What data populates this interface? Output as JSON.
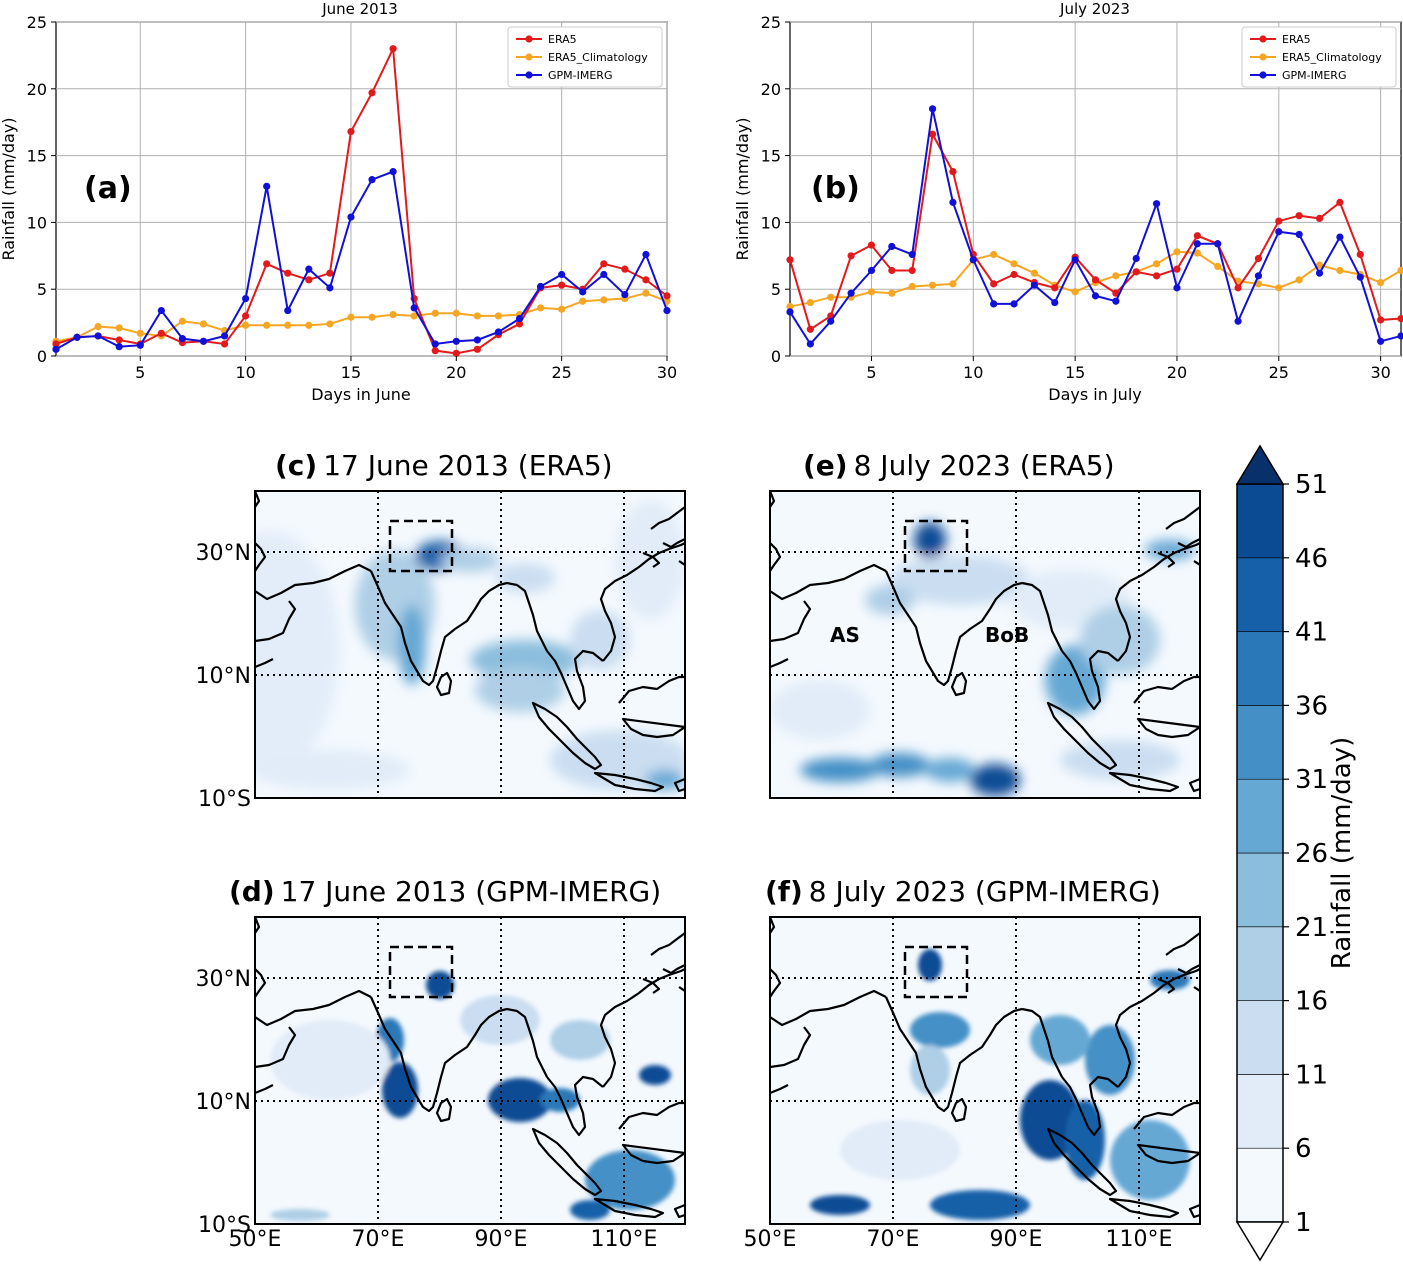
{
  "colors": {
    "era5": "#e31a1c",
    "clim": "#f5a623",
    "imerg": "#1010d8",
    "grid": "#b0b0b0"
  },
  "chart_data": [
    {
      "type": "line",
      "panel": "(a)",
      "title": "June 2013",
      "xlabel": "Days in June",
      "ylabel": "Rainfall (mm/day)",
      "xlim": [
        1,
        30
      ],
      "ylim": [
        0,
        25
      ],
      "x_ticks": [
        5,
        10,
        15,
        20,
        25,
        30
      ],
      "y_ticks": [
        0,
        5,
        10,
        15,
        20,
        25
      ],
      "grid": true,
      "legend": "top-right",
      "x": [
        1,
        2,
        3,
        4,
        5,
        6,
        7,
        8,
        9,
        10,
        11,
        12,
        13,
        14,
        15,
        16,
        17,
        18,
        19,
        20,
        21,
        22,
        23,
        24,
        25,
        26,
        27,
        28,
        29,
        30
      ],
      "series": [
        {
          "name": "ERA5",
          "values": [
            0.9,
            1.4,
            1.5,
            1.2,
            0.9,
            1.7,
            1.0,
            1.1,
            0.9,
            3.0,
            6.9,
            6.2,
            5.7,
            6.2,
            16.8,
            19.7,
            23.0,
            4.3,
            0.4,
            0.2,
            0.5,
            1.6,
            2.4,
            5.1,
            5.3,
            5.0,
            6.9,
            6.5,
            5.7,
            4.5
          ]
        },
        {
          "name": "ERA5_Climatology",
          "values": [
            1.1,
            1.4,
            2.2,
            2.1,
            1.7,
            1.5,
            2.6,
            2.4,
            1.9,
            2.3,
            2.3,
            2.3,
            2.3,
            2.4,
            2.9,
            2.9,
            3.1,
            3.0,
            3.2,
            3.2,
            3.0,
            3.0,
            3.1,
            3.6,
            3.5,
            4.1,
            4.2,
            4.3,
            4.7,
            4.1
          ]
        },
        {
          "name": "GPM-IMERG",
          "values": [
            0.5,
            1.4,
            1.5,
            0.7,
            0.8,
            3.4,
            1.3,
            1.1,
            1.5,
            4.3,
            12.7,
            3.4,
            6.5,
            5.1,
            10.4,
            13.2,
            13.8,
            3.6,
            0.9,
            1.1,
            1.2,
            1.8,
            2.8,
            5.2,
            6.1,
            4.8,
            6.1,
            4.6,
            7.6,
            3.4
          ]
        }
      ]
    },
    {
      "type": "line",
      "panel": "(b)",
      "title": "July 2023",
      "xlabel": "Days in July",
      "ylabel": "Rainfall (mm/day)",
      "xlim": [
        1,
        31
      ],
      "ylim": [
        0,
        25
      ],
      "x_ticks": [
        5,
        10,
        15,
        20,
        25,
        30
      ],
      "y_ticks": [
        0,
        5,
        10,
        15,
        20,
        25
      ],
      "grid": true,
      "legend": "top-right",
      "x": [
        1,
        2,
        3,
        4,
        5,
        6,
        7,
        8,
        9,
        10,
        11,
        12,
        13,
        14,
        15,
        16,
        17,
        18,
        19,
        20,
        21,
        22,
        23,
        24,
        25,
        26,
        27,
        28,
        29,
        30,
        31
      ],
      "series": [
        {
          "name": "ERA5",
          "values": [
            7.2,
            2.0,
            3.0,
            7.5,
            8.3,
            6.4,
            6.4,
            16.6,
            13.8,
            7.6,
            5.4,
            6.1,
            5.5,
            5.1,
            7.4,
            5.7,
            4.7,
            6.3,
            6.0,
            6.5,
            9.0,
            8.4,
            5.1,
            7.3,
            10.1,
            10.5,
            10.3,
            11.5,
            7.6,
            2.7,
            2.8
          ]
        },
        {
          "name": "ERA5_Climatology",
          "values": [
            3.7,
            4.0,
            4.4,
            4.4,
            4.8,
            4.7,
            5.2,
            5.3,
            5.4,
            7.2,
            7.6,
            6.9,
            6.2,
            5.3,
            4.8,
            5.5,
            6.0,
            6.3,
            6.9,
            7.8,
            7.7,
            6.7,
            5.6,
            5.4,
            5.1,
            5.7,
            6.8,
            6.4,
            6.1,
            5.5,
            6.4
          ]
        },
        {
          "name": "GPM-IMERG",
          "values": [
            3.3,
            0.9,
            2.6,
            4.7,
            6.4,
            8.2,
            7.6,
            18.5,
            11.5,
            7.2,
            3.9,
            3.9,
            5.3,
            4.0,
            7.2,
            4.5,
            4.1,
            7.3,
            11.4,
            5.1,
            8.4,
            8.4,
            2.6,
            6.0,
            9.3,
            9.1,
            6.2,
            8.9,
            5.9,
            1.1,
            1.5
          ]
        }
      ]
    },
    {
      "type": "heatmap",
      "panel": "(c)",
      "title": "17 June 2013 (ERA5)",
      "lon_ticks": [
        "70°E",
        "90°E",
        "110°E"
      ],
      "lat_ticks": [
        "30°N",
        "10°N",
        "10°S"
      ],
      "lon_range": [
        50,
        120
      ],
      "lat_range": [
        -10,
        40
      ]
    },
    {
      "type": "heatmap",
      "panel": "(d)",
      "title": "17 June 2013 (GPM-IMERG)",
      "lon_ticks": [
        "50°E",
        "70°E",
        "90°E",
        "110°E"
      ],
      "lat_ticks": [
        "30°N",
        "10°N",
        "10°S"
      ],
      "lon_range": [
        50,
        120
      ],
      "lat_range": [
        -10,
        40
      ]
    },
    {
      "type": "heatmap",
      "panel": "(e)",
      "title": "8 July 2023 (ERA5)",
      "annotations": [
        "AS",
        "BoB"
      ],
      "lon_range": [
        50,
        120
      ],
      "lat_range": [
        -10,
        40
      ]
    },
    {
      "type": "heatmap",
      "panel": "(f)",
      "title": "8 July 2023 (GPM-IMERG)",
      "lon_ticks": [
        "50°E",
        "70°E",
        "90°E",
        "110°E"
      ],
      "lon_range": [
        50,
        120
      ],
      "lat_range": [
        -10,
        40
      ]
    }
  ],
  "colorbar": {
    "label": "Rainfall (mm/day)",
    "ticks": [
      "1",
      "6",
      "11",
      "16",
      "21",
      "26",
      "31",
      "36",
      "41",
      "46",
      "51"
    ],
    "colors": [
      "#f4f9fe",
      "#e1ecf8",
      "#cbdef1",
      "#aecfe6",
      "#8bbedd",
      "#66a8d4",
      "#4490c6",
      "#2b78b8",
      "#1560a8",
      "#0a4b94",
      "#08306b"
    ]
  }
}
